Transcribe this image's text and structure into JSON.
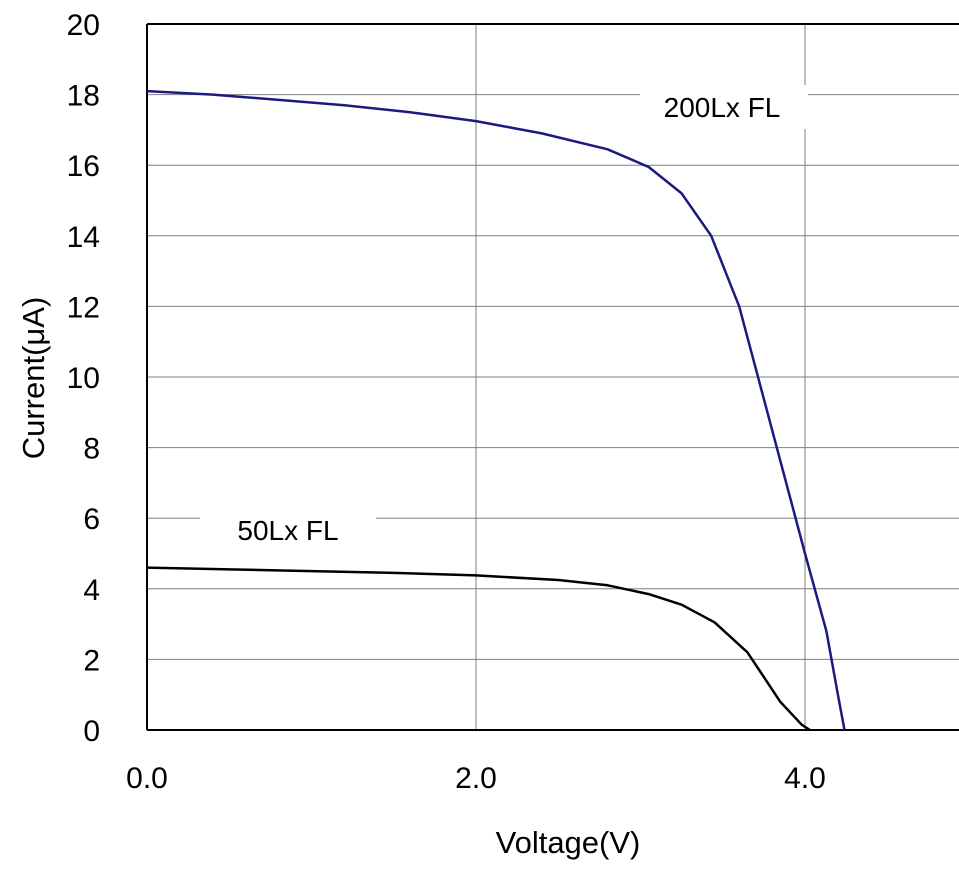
{
  "chart_data": {
    "type": "line",
    "title": "",
    "xlabel": "Voltage(V)",
    "ylabel": "Current(μA)",
    "xlim": [
      0,
      5
    ],
    "ylim": [
      0,
      20
    ],
    "x_ticks": [
      0,
      2,
      4
    ],
    "x_tick_labels": [
      "0.0",
      "2.0",
      "4.0"
    ],
    "y_ticks": [
      0,
      2,
      4,
      6,
      8,
      10,
      12,
      14,
      16,
      18,
      20
    ],
    "y_tick_labels": [
      "0",
      "2",
      "4",
      "6",
      "8",
      "10",
      "12",
      "14",
      "16",
      "18",
      "20"
    ],
    "grid": true,
    "legend": "none",
    "series": [
      {
        "name": "200Lx FL",
        "color": "#1a1a80",
        "x": [
          0.0,
          0.4,
          0.8,
          1.2,
          1.6,
          2.0,
          2.4,
          2.8,
          3.05,
          3.25,
          3.43,
          3.6,
          3.8,
          4.0,
          4.13,
          4.2,
          4.24
        ],
        "y": [
          18.1,
          18.0,
          17.85,
          17.7,
          17.5,
          17.25,
          16.9,
          16.45,
          15.95,
          15.2,
          14.0,
          12.0,
          8.5,
          5.0,
          2.8,
          1.0,
          0.0
        ]
      },
      {
        "name": "50Lx FL",
        "color": "#000000",
        "x": [
          0.0,
          0.5,
          1.0,
          1.5,
          2.0,
          2.5,
          2.8,
          3.05,
          3.25,
          3.45,
          3.65,
          3.85,
          3.98,
          4.03
        ],
        "y": [
          4.6,
          4.55,
          4.5,
          4.45,
          4.38,
          4.25,
          4.1,
          3.85,
          3.55,
          3.05,
          2.2,
          0.8,
          0.15,
          0.0
        ]
      }
    ]
  }
}
